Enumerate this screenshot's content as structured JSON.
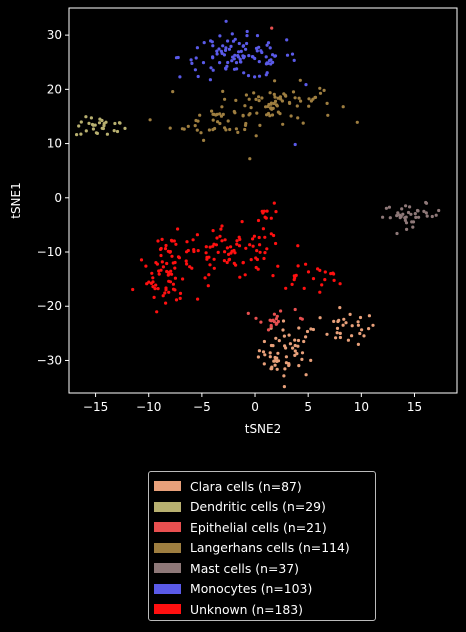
{
  "chart_data": {
    "type": "scatter",
    "title": "",
    "xlabel": "tSNE2",
    "ylabel": "tSNE1",
    "xlim": [
      -17.5,
      19
    ],
    "ylim": [
      -36,
      35
    ],
    "xticks": [
      -15,
      -10,
      -5,
      0,
      5,
      10,
      15
    ],
    "yticks": [
      -30,
      -20,
      -10,
      0,
      10,
      20,
      30
    ],
    "grid": false,
    "legend_position": "below",
    "series": [
      {
        "name": "Clara cells (n=87)",
        "color": "#e8a07a",
        "clusters": [
          {
            "cx": 3.2,
            "cy": -28.0,
            "sx": 1.4,
            "sy": 2.6,
            "n": 45
          },
          {
            "cx": 8.8,
            "cy": -24.0,
            "sx": 1.3,
            "sy": 1.5,
            "n": 28
          },
          {
            "cx": 2.0,
            "cy": -30.5,
            "sx": 1.0,
            "sy": 0.8,
            "n": 14
          }
        ]
      },
      {
        "name": "Dendritic cells (n=29)",
        "color": "#b8b070",
        "clusters": [
          {
            "cx": -14.5,
            "cy": 13.0,
            "sx": 1.2,
            "sy": 0.9,
            "n": 29
          }
        ]
      },
      {
        "name": "Epithelial cells (n=21)",
        "color": "#e85050",
        "clusters": [
          {
            "cx": 1.2,
            "cy": -22.5,
            "sx": 0.8,
            "sy": 1.1,
            "n": 17
          },
          {
            "cx": 1.5,
            "cy": 31.2,
            "sx": 0.2,
            "sy": 0.2,
            "n": 1
          },
          {
            "cx": 4.0,
            "cy": -21.5,
            "sx": 0.6,
            "sy": 0.8,
            "n": 3
          }
        ]
      },
      {
        "name": "Langerhans cells (n=114)",
        "color": "#9e7e40",
        "clusters": [
          {
            "cx": 2.0,
            "cy": 17.5,
            "sx": 2.8,
            "sy": 1.8,
            "n": 70
          },
          {
            "cx": -3.5,
            "cy": 14.0,
            "sx": 2.2,
            "sy": 1.6,
            "n": 40
          },
          {
            "cx": -0.5,
            "cy": 7.5,
            "sx": 0.3,
            "sy": 0.3,
            "n": 1
          },
          {
            "cx": 5.5,
            "cy": 19.5,
            "sx": 0.6,
            "sy": 1.0,
            "n": 3
          }
        ]
      },
      {
        "name": "Mast cells (n=37)",
        "color": "#8e7878",
        "clusters": [
          {
            "cx": 14.8,
            "cy": -3.2,
            "sx": 1.4,
            "sy": 1.0,
            "n": 37
          }
        ]
      },
      {
        "name": "Monocytes (n=103)",
        "color": "#5a5ae8",
        "clusters": [
          {
            "cx": -1.5,
            "cy": 26.0,
            "sx": 2.8,
            "sy": 2.0,
            "n": 102
          },
          {
            "cx": 3.8,
            "cy": 10.0,
            "sx": 0.2,
            "sy": 0.2,
            "n": 1
          }
        ]
      },
      {
        "name": "Unknown (n=183)",
        "color": "#ff1010",
        "clusters": [
          {
            "cx": -2.0,
            "cy": -10.5,
            "sx": 2.5,
            "sy": 2.5,
            "n": 80
          },
          {
            "cx": -8.0,
            "cy": -11.0,
            "sx": 1.2,
            "sy": 2.2,
            "n": 45
          },
          {
            "cx": -8.5,
            "cy": -17.0,
            "sx": 1.3,
            "sy": 1.0,
            "n": 25
          },
          {
            "cx": 5.0,
            "cy": -14.5,
            "sx": 1.8,
            "sy": 1.3,
            "n": 23
          },
          {
            "cx": 0.8,
            "cy": -3.0,
            "sx": 0.5,
            "sy": 1.0,
            "n": 10
          }
        ]
      }
    ]
  }
}
